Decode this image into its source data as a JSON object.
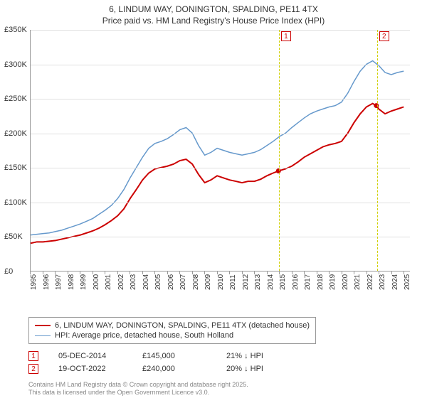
{
  "title_line1": "6, LINDUM WAY, DONINGTON, SPALDING, PE11 4TX",
  "title_line2": "Price paid vs. HM Land Registry's House Price Index (HPI)",
  "chart": {
    "type": "line",
    "background_color": "#ffffff",
    "grid_color": "#e0e0e0",
    "axis_color": "#999999",
    "x": {
      "min": 1995,
      "max": 2025.5,
      "ticks": [
        1995,
        1996,
        1997,
        1998,
        1999,
        2000,
        2001,
        2002,
        2003,
        2004,
        2005,
        2006,
        2007,
        2008,
        2009,
        2010,
        2011,
        2012,
        2013,
        2014,
        2015,
        2016,
        2017,
        2018,
        2019,
        2020,
        2021,
        2022,
        2023,
        2024,
        2025
      ],
      "label_fontsize": 10
    },
    "y": {
      "min": 0,
      "max": 350000,
      "ticks": [
        0,
        50000,
        100000,
        150000,
        200000,
        250000,
        300000,
        350000
      ],
      "tick_labels": [
        "£0",
        "£50K",
        "£100K",
        "£150K",
        "£200K",
        "£250K",
        "£300K",
        "£350K"
      ],
      "label_fontsize": 11
    },
    "series": [
      {
        "name": "property_price",
        "label": "6, LINDUM WAY, DONINGTON, SPALDING, PE11 4TX (detached house)",
        "color": "#cc0000",
        "line_width": 2,
        "data": [
          [
            1995,
            40000
          ],
          [
            1995.5,
            42000
          ],
          [
            1996,
            42000
          ],
          [
            1996.5,
            43000
          ],
          [
            1997,
            44000
          ],
          [
            1997.5,
            46000
          ],
          [
            1998,
            48000
          ],
          [
            1998.5,
            50000
          ],
          [
            1999,
            52000
          ],
          [
            1999.5,
            55000
          ],
          [
            2000,
            58000
          ],
          [
            2000.5,
            62000
          ],
          [
            2001,
            67000
          ],
          [
            2001.5,
            73000
          ],
          [
            2002,
            80000
          ],
          [
            2002.5,
            90000
          ],
          [
            2003,
            105000
          ],
          [
            2003.5,
            118000
          ],
          [
            2004,
            132000
          ],
          [
            2004.5,
            142000
          ],
          [
            2005,
            148000
          ],
          [
            2005.5,
            150000
          ],
          [
            2006,
            152000
          ],
          [
            2006.5,
            155000
          ],
          [
            2007,
            160000
          ],
          [
            2007.5,
            162000
          ],
          [
            2008,
            155000
          ],
          [
            2008.5,
            140000
          ],
          [
            2009,
            128000
          ],
          [
            2009.5,
            132000
          ],
          [
            2010,
            138000
          ],
          [
            2010.5,
            135000
          ],
          [
            2011,
            132000
          ],
          [
            2011.5,
            130000
          ],
          [
            2012,
            128000
          ],
          [
            2012.5,
            130000
          ],
          [
            2013,
            130000
          ],
          [
            2013.5,
            133000
          ],
          [
            2014,
            138000
          ],
          [
            2014.5,
            142000
          ],
          [
            2014.93,
            145000
          ],
          [
            2015.5,
            148000
          ],
          [
            2016,
            152000
          ],
          [
            2016.5,
            158000
          ],
          [
            2017,
            165000
          ],
          [
            2017.5,
            170000
          ],
          [
            2018,
            175000
          ],
          [
            2018.5,
            180000
          ],
          [
            2019,
            183000
          ],
          [
            2019.5,
            185000
          ],
          [
            2020,
            188000
          ],
          [
            2020.5,
            200000
          ],
          [
            2021,
            215000
          ],
          [
            2021.5,
            228000
          ],
          [
            2022,
            238000
          ],
          [
            2022.5,
            243000
          ],
          [
            2022.8,
            240000
          ],
          [
            2023,
            235000
          ],
          [
            2023.5,
            228000
          ],
          [
            2024,
            232000
          ],
          [
            2024.5,
            235000
          ],
          [
            2025,
            238000
          ]
        ]
      },
      {
        "name": "hpi",
        "label": "HPI: Average price, detached house, South Holland",
        "color": "#6699cc",
        "line_width": 1.5,
        "data": [
          [
            1995,
            52000
          ],
          [
            1995.5,
            53000
          ],
          [
            1996,
            54000
          ],
          [
            1996.5,
            55000
          ],
          [
            1997,
            57000
          ],
          [
            1997.5,
            59000
          ],
          [
            1998,
            62000
          ],
          [
            1998.5,
            65000
          ],
          [
            1999,
            68000
          ],
          [
            1999.5,
            72000
          ],
          [
            2000,
            76000
          ],
          [
            2000.5,
            82000
          ],
          [
            2001,
            88000
          ],
          [
            2001.5,
            95000
          ],
          [
            2002,
            105000
          ],
          [
            2002.5,
            118000
          ],
          [
            2003,
            135000
          ],
          [
            2003.5,
            150000
          ],
          [
            2004,
            165000
          ],
          [
            2004.5,
            178000
          ],
          [
            2005,
            185000
          ],
          [
            2005.5,
            188000
          ],
          [
            2006,
            192000
          ],
          [
            2006.5,
            198000
          ],
          [
            2007,
            205000
          ],
          [
            2007.5,
            208000
          ],
          [
            2008,
            200000
          ],
          [
            2008.5,
            182000
          ],
          [
            2009,
            168000
          ],
          [
            2009.5,
            172000
          ],
          [
            2010,
            178000
          ],
          [
            2010.5,
            175000
          ],
          [
            2011,
            172000
          ],
          [
            2011.5,
            170000
          ],
          [
            2012,
            168000
          ],
          [
            2012.5,
            170000
          ],
          [
            2013,
            172000
          ],
          [
            2013.5,
            176000
          ],
          [
            2014,
            182000
          ],
          [
            2014.5,
            188000
          ],
          [
            2015,
            195000
          ],
          [
            2015.5,
            200000
          ],
          [
            2016,
            208000
          ],
          [
            2016.5,
            215000
          ],
          [
            2017,
            222000
          ],
          [
            2017.5,
            228000
          ],
          [
            2018,
            232000
          ],
          [
            2018.5,
            235000
          ],
          [
            2019,
            238000
          ],
          [
            2019.5,
            240000
          ],
          [
            2020,
            245000
          ],
          [
            2020.5,
            258000
          ],
          [
            2021,
            275000
          ],
          [
            2021.5,
            290000
          ],
          [
            2022,
            300000
          ],
          [
            2022.5,
            305000
          ],
          [
            2023,
            298000
          ],
          [
            2023.5,
            288000
          ],
          [
            2024,
            285000
          ],
          [
            2024.5,
            288000
          ],
          [
            2025,
            290000
          ]
        ]
      }
    ],
    "markers": [
      {
        "id": "1",
        "x": 2014.93,
        "y": 145000,
        "line_color": "#d0d000"
      },
      {
        "id": "2",
        "x": 2022.8,
        "y": 240000,
        "line_color": "#d0d000"
      }
    ]
  },
  "legend": {
    "items": [
      {
        "color": "#cc0000",
        "width": 2,
        "label": "6, LINDUM WAY, DONINGTON, SPALDING, PE11 4TX (detached house)"
      },
      {
        "color": "#6699cc",
        "width": 1.5,
        "label": "HPI: Average price, detached house, South Holland"
      }
    ]
  },
  "sales": [
    {
      "marker": "1",
      "date": "05-DEC-2014",
      "price": "£145,000",
      "delta": "21% ↓ HPI"
    },
    {
      "marker": "2",
      "date": "19-OCT-2022",
      "price": "£240,000",
      "delta": "20% ↓ HPI"
    }
  ],
  "footer_line1": "Contains HM Land Registry data © Crown copyright and database right 2025.",
  "footer_line2": "This data is licensed under the Open Government Licence v3.0."
}
